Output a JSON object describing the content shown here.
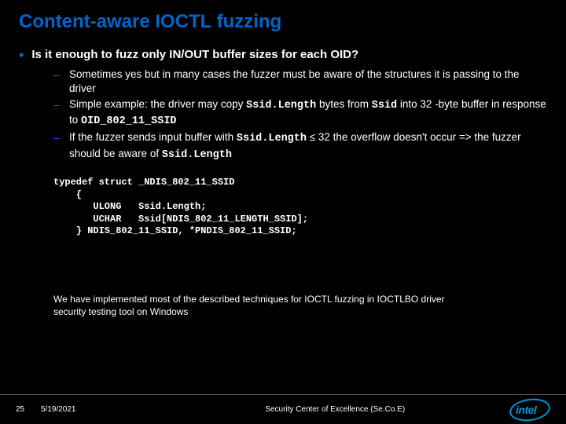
{
  "title": "Content-aware IOCTL fuzzing",
  "bullet": {
    "text": "Is it enough to fuzz only IN/OUT buffer sizes for each OID?"
  },
  "subs": [
    "Sometimes yes but in many cases the fuzzer must be aware of the structures it is passing to the driver",
    "Simple example: the driver may copy <span class=\"mono\">Ssid.Length</span> bytes from <span class=\"mono\">Ssid</span> into 32 -byte buffer in response to <span class=\"mono\">OID_802_11_SSID</span>",
    "If the fuzzer sends input buffer with <span class=\"mono\">Ssid.Length</span> ≤ 32 the overflow doesn't occur => the fuzzer should be aware of <span class=\"mono\">Ssid.Length</span>"
  ],
  "code": "typedef struct _NDIS_802_11_SSID\n    {\n       ULONG   Ssid.Length;\n       UCHAR   Ssid[NDIS_802_11_LENGTH_SSID];\n    } NDIS_802_11_SSID, *PNDIS_802_11_SSID;",
  "note": "We have implemented most of the described techniques for IOCTL fuzzing in IOCTLBO driver security testing tool on Windows",
  "footer": {
    "page": "25",
    "date": "5/19/2021",
    "center": "Security Center of Excellence (Se.Co.E)",
    "logo": "intel"
  },
  "colors": {
    "background": "#000000",
    "accent": "#0066cc",
    "text": "#ffffff",
    "intel": "#0096d6"
  }
}
